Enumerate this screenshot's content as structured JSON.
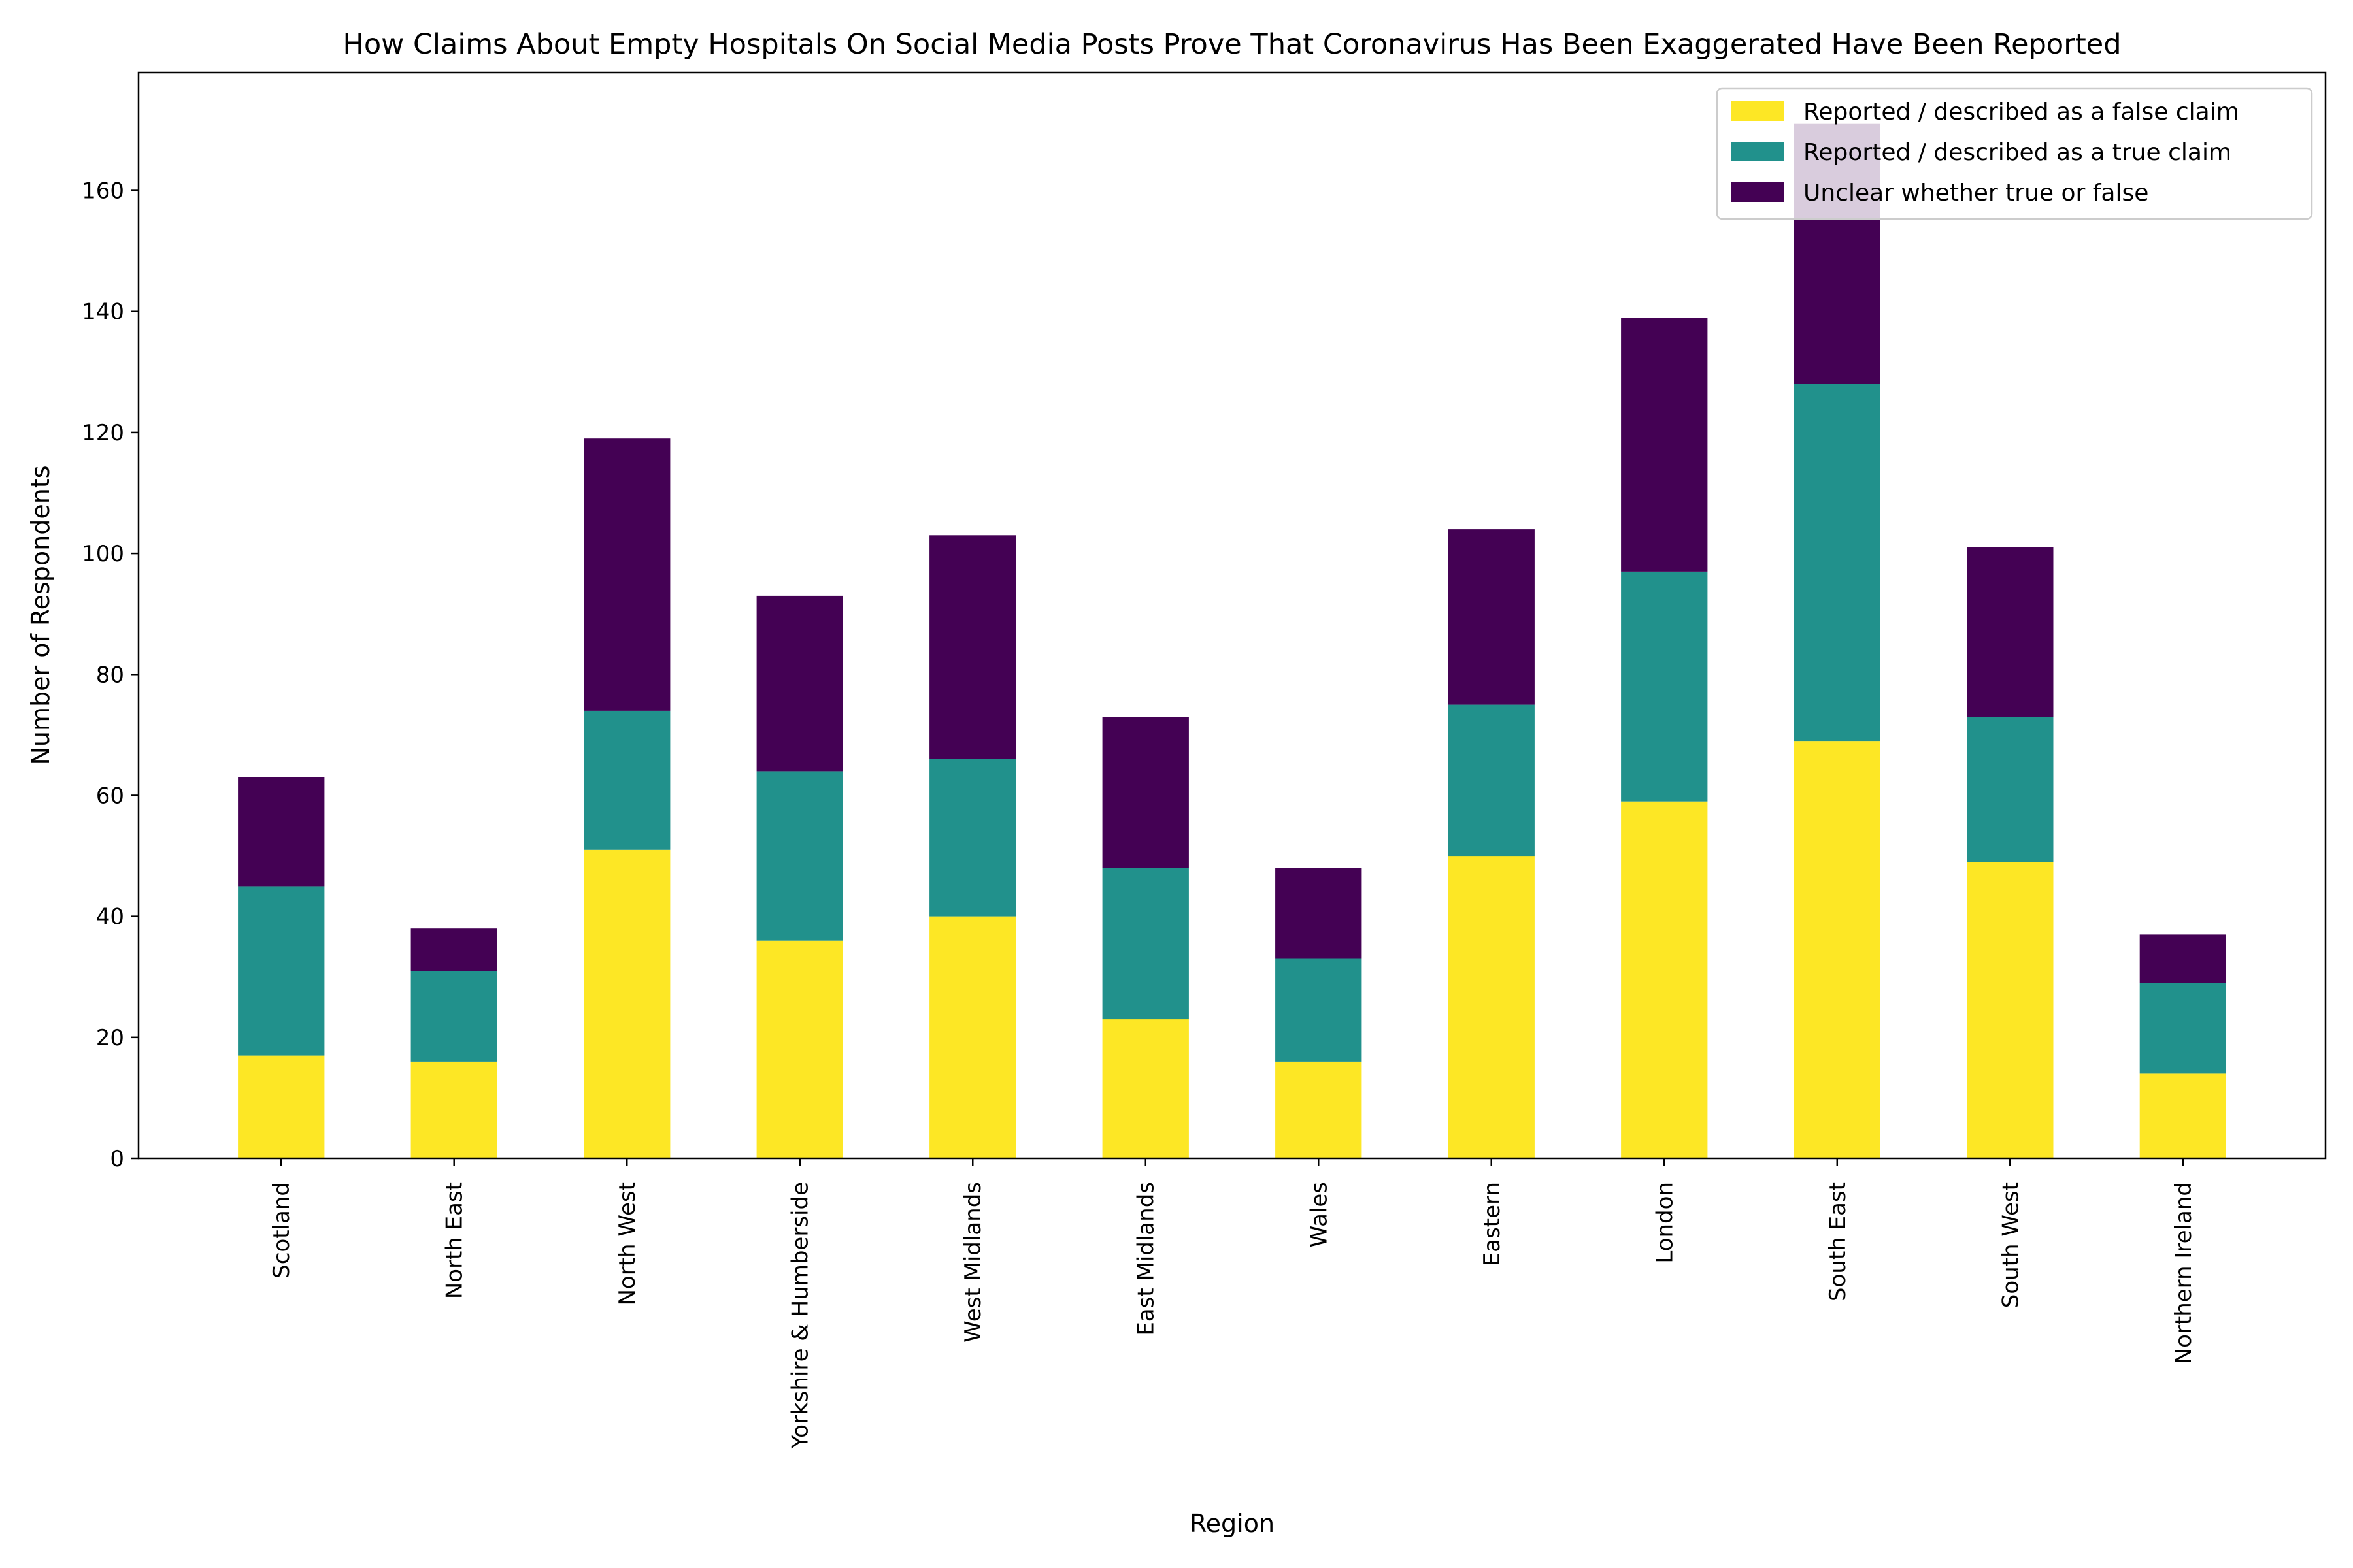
{
  "chart_data": {
    "type": "bar",
    "stacked": true,
    "title": "How Claims About Empty Hospitals On Social Media Posts Prove That Coronavirus Has Been Exaggerated Have Been Reported",
    "xlabel": "Region",
    "ylabel": "Number of Respondents",
    "ylim": [
      0,
      180
    ],
    "yticks": [
      "0",
      "20",
      "40",
      "60",
      "80",
      "100",
      "120",
      "140",
      "160"
    ],
    "grid": false,
    "legend_position": "top-right",
    "categories": [
      "Scotland",
      "North East",
      "North West",
      "Yorkshire & Humberside",
      "West Midlands",
      "East Midlands",
      "Wales",
      "Eastern",
      "London",
      "South East",
      "South West",
      "Northern Ireland"
    ],
    "series": [
      {
        "name": "Reported / described as a false claim",
        "color": "#fde725",
        "values": [
          17,
          16,
          51,
          36,
          40,
          23,
          16,
          50,
          59,
          69,
          49,
          14
        ]
      },
      {
        "name": "Reported / described as a true claim",
        "color": "#21918c",
        "values": [
          28,
          15,
          23,
          28,
          26,
          25,
          17,
          25,
          38,
          59,
          24,
          15
        ]
      },
      {
        "name": "Unclear whether true or false",
        "color": "#440154",
        "values": [
          18,
          7,
          45,
          29,
          37,
          25,
          15,
          29,
          42,
          43,
          28,
          8
        ]
      }
    ]
  }
}
